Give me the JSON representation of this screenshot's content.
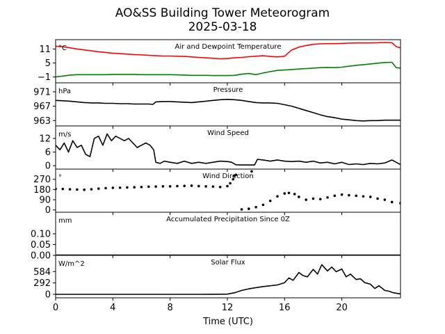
{
  "title_line1": "AO&SS Building Tower Meteorogram",
  "title_line2": "2025-03-18",
  "x_axis_label": "Time (UTC)",
  "colors": {
    "temperature": "#ff0000",
    "dewpoint": "#008000",
    "black": "#000000"
  },
  "chart_data": [
    {
      "type": "line",
      "title": "Air and Dewpoint Temperature",
      "unit": "°C",
      "x_ticks": [
        0,
        4,
        8,
        12,
        16,
        20
      ],
      "xlim": [
        0,
        24.1
      ],
      "ylim": [
        -3.5,
        15
      ],
      "y_ticks": [
        -1,
        5,
        11
      ],
      "y_tick_labels": [
        "−1",
        "5",
        "11"
      ],
      "series": [
        {
          "color": "#ff0000",
          "x": [
            0,
            0.5,
            1,
            1.5,
            2,
            2.5,
            3,
            3.5,
            4,
            4.5,
            5,
            5.5,
            6,
            6.5,
            7,
            7.5,
            8,
            8.5,
            9,
            9.5,
            10,
            10.5,
            11,
            11.5,
            12,
            12.5,
            13,
            13.5,
            14,
            14.5,
            15,
            15.5,
            16,
            16.5,
            17,
            17.5,
            18,
            18.5,
            19,
            19.5,
            20,
            20.5,
            21,
            21.5,
            22,
            22.5,
            23,
            23.5,
            23.8,
            24.1
          ],
          "y": [
            12.2,
            12,
            11.5,
            11,
            10.6,
            10.2,
            9.8,
            9.5,
            9.2,
            9,
            8.8,
            8.6,
            8.5,
            8.3,
            8.1,
            8,
            8,
            7.9,
            7.8,
            7.6,
            7.4,
            7.2,
            7,
            6.8,
            6.9,
            7.2,
            7.4,
            7.7,
            7.9,
            8.1,
            7.8,
            7.6,
            7.9,
            10.6,
            11.8,
            12.5,
            13,
            13.2,
            13.3,
            13.3,
            13.4,
            13.5,
            13.6,
            13.6,
            13.6,
            13.7,
            13.8,
            13.7,
            12,
            11.5
          ]
        },
        {
          "color": "#008000",
          "x": [
            0,
            0.5,
            1,
            1.5,
            2,
            2.5,
            3,
            3.5,
            4,
            4.5,
            5,
            5.5,
            6,
            6.5,
            7,
            7.5,
            8,
            8.5,
            9,
            9.5,
            10,
            10.5,
            11,
            11.5,
            12,
            12.5,
            13,
            13.5,
            14,
            14.5,
            15,
            15.5,
            16,
            16.5,
            17,
            17.5,
            18,
            18.5,
            19,
            19.5,
            20,
            20.5,
            21,
            21.5,
            22,
            22.5,
            23,
            23.5,
            23.8,
            24.1
          ],
          "y": [
            -1,
            -0.6,
            -0.2,
            0,
            0,
            0,
            0,
            0,
            0.1,
            0.1,
            0.1,
            0.1,
            0,
            0,
            0,
            0,
            0,
            -0.1,
            -0.2,
            -0.3,
            -0.3,
            -0.3,
            -0.4,
            -0.4,
            -0.4,
            -0.3,
            0.2,
            0.5,
            0,
            0.7,
            1.3,
            1.8,
            2,
            2.2,
            2.4,
            2.6,
            2.8,
            3,
            3.1,
            3,
            3.2,
            3.6,
            4,
            4.3,
            4.6,
            4.9,
            5.2,
            5.3,
            3,
            2.8
          ]
        }
      ]
    },
    {
      "type": "line",
      "title": "Pressure",
      "unit": "hPa",
      "x_ticks": [
        0,
        4,
        8,
        12,
        16,
        20
      ],
      "xlim": [
        0,
        24.1
      ],
      "ylim": [
        961.5,
        973.5
      ],
      "y_ticks": [
        963,
        967,
        971
      ],
      "y_tick_labels": [
        "963",
        "967",
        "971"
      ],
      "series": [
        {
          "color": "#000000",
          "x": [
            0,
            0.5,
            1,
            1.5,
            2,
            2.5,
            3,
            3.5,
            4,
            4.5,
            5,
            5.5,
            6,
            6.5,
            6.8,
            7,
            7.5,
            8,
            8.5,
            9,
            9.5,
            10,
            10.5,
            11,
            11.5,
            12,
            12.5,
            13,
            13.5,
            14,
            14.5,
            15,
            15.5,
            16,
            16.5,
            17,
            17.5,
            18,
            18.5,
            19,
            19.5,
            20,
            20.5,
            21,
            21.5,
            22,
            22.5,
            23,
            23.5,
            24.1
          ],
          "y": [
            968.6,
            968.5,
            968.4,
            968.2,
            968,
            967.9,
            967.9,
            967.8,
            967.8,
            967.7,
            967.7,
            967.6,
            967.6,
            967.6,
            967.5,
            968.2,
            968.3,
            968.3,
            968.2,
            968.1,
            968,
            968.2,
            968.4,
            968.6,
            968.8,
            968.9,
            968.8,
            968.6,
            968.3,
            968,
            967.9,
            967.9,
            967.8,
            967.4,
            967,
            966.4,
            965.8,
            965.2,
            964.6,
            964.1,
            963.8,
            963.4,
            963.2,
            963,
            962.9,
            963,
            963,
            963.1,
            963.1,
            963.1
          ]
        }
      ]
    },
    {
      "type": "line",
      "title": "Wind Speed",
      "unit": "m/s",
      "x_ticks": [
        0,
        4,
        8,
        12,
        16,
        20
      ],
      "xlim": [
        0,
        24.1
      ],
      "ylim": [
        -1.5,
        17.5
      ],
      "y_ticks": [
        0,
        6,
        12
      ],
      "y_tick_labels": [
        "0",
        "6",
        "12"
      ],
      "series": [
        {
          "color": "#000000",
          "x": [
            0,
            0.3,
            0.6,
            0.9,
            1.2,
            1.5,
            1.8,
            2.1,
            2.4,
            2.7,
            3,
            3.3,
            3.6,
            3.9,
            4.2,
            4.5,
            4.8,
            5.1,
            5.4,
            5.7,
            6,
            6.3,
            6.6,
            6.85,
            7,
            7.3,
            7.6,
            8,
            8.5,
            9,
            9.5,
            10,
            10.5,
            11,
            11.5,
            12,
            12.3,
            12.6,
            13,
            13.5,
            13.9,
            14.1,
            14.5,
            15,
            15.5,
            16,
            16.5,
            17,
            17.5,
            18,
            18.5,
            19,
            19.5,
            20,
            20.5,
            21,
            21.5,
            22,
            22.5,
            23,
            23.5,
            24.1
          ],
          "y": [
            9,
            7,
            10,
            6,
            11,
            8,
            9,
            5,
            4,
            12,
            13,
            9,
            14,
            11,
            13,
            12,
            11,
            12,
            10,
            8,
            9,
            10,
            9,
            7,
            1.5,
            1,
            2,
            1.5,
            1,
            2,
            1,
            1.5,
            1,
            1.5,
            2,
            1.8,
            1.5,
            0.4,
            0.3,
            0.3,
            0.3,
            2.8,
            2.5,
            2,
            2.5,
            2,
            1.8,
            2,
            1.5,
            2,
            1.2,
            1.5,
            0.8,
            1.5,
            0.5,
            0.8,
            0.5,
            1,
            0.8,
            1.2,
            2.5,
            0.5
          ]
        }
      ]
    },
    {
      "type": "scatter",
      "title": "Wind Direction",
      "unit": "°",
      "x_ticks": [
        0,
        4,
        8,
        12,
        16,
        20
      ],
      "xlim": [
        0,
        24.1
      ],
      "ylim": [
        -20,
        360
      ],
      "y_ticks": [
        0,
        90,
        180,
        270
      ],
      "y_tick_labels": [
        "0",
        "90",
        "180",
        "270"
      ],
      "series": [
        {
          "color": "#000000",
          "x": [
            0,
            0.5,
            1,
            1.5,
            2,
            2.5,
            3,
            3.5,
            4,
            4.5,
            5,
            5.5,
            6,
            6.5,
            7,
            7.5,
            8,
            8.5,
            9,
            9.5,
            10,
            10.5,
            11,
            11.5,
            12,
            12.2,
            12.4,
            12.5,
            12.6,
            13,
            13.5,
            13.7,
            14,
            14.5,
            15,
            15.5,
            16,
            16.3,
            16.7,
            17,
            17.5,
            18,
            18.5,
            19,
            19.5,
            20,
            20.5,
            21,
            21.5,
            22,
            22.5,
            23,
            23.5,
            24.1
          ],
          "y": [
            185,
            185,
            182,
            180,
            178,
            182,
            188,
            192,
            195,
            196,
            198,
            200,
            202,
            205,
            206,
            208,
            208,
            210,
            212,
            214,
            210,
            208,
            206,
            202,
            210,
            235,
            270,
            300,
            310,
            5,
            10,
            340,
            25,
            45,
            80,
            120,
            145,
            150,
            140,
            115,
            90,
            100,
            95,
            110,
            125,
            135,
            130,
            125,
            120,
            115,
            100,
            90,
            70,
            60
          ]
        }
      ]
    },
    {
      "type": "line",
      "title": "Accumulated Precipitation Since 0Z",
      "unit": "mm",
      "x_ticks": [
        0,
        4,
        8,
        12,
        16,
        20
      ],
      "xlim": [
        0,
        24.1
      ],
      "ylim": [
        0,
        0.2
      ],
      "y_ticks": [
        0,
        0.05,
        0.1
      ],
      "y_tick_labels": [
        "0.00",
        "0.05",
        "0.10"
      ],
      "series": [
        {
          "color": "#000000",
          "x": [
            0,
            24.1
          ],
          "y": [
            0,
            0
          ]
        }
      ]
    },
    {
      "type": "line",
      "title": "Solar Flux",
      "unit": "W/m^2",
      "x_ticks": [
        0,
        4,
        8,
        12,
        16,
        20
      ],
      "xlim": [
        0,
        24.1
      ],
      "ylim": [
        -90,
        1000
      ],
      "y_ticks": [
        0,
        292,
        584
      ],
      "y_tick_labels": [
        "0",
        "292",
        "584"
      ],
      "series": [
        {
          "color": "#000000",
          "x": [
            0,
            2,
            4,
            6,
            8,
            10,
            11,
            12,
            12.5,
            13,
            13.5,
            14,
            14.5,
            15,
            15.5,
            16,
            16.3,
            16.6,
            17,
            17.3,
            17.6,
            18,
            18.3,
            18.6,
            19,
            19.3,
            19.6,
            20,
            20.3,
            20.6,
            21,
            21.3,
            21.6,
            22,
            22.3,
            22.6,
            23,
            23.3,
            23.6,
            24.1
          ],
          "y": [
            0,
            0,
            0,
            0,
            0,
            0,
            2,
            5,
            40,
            100,
            140,
            170,
            200,
            220,
            240,
            300,
            420,
            360,
            560,
            480,
            450,
            640,
            520,
            760,
            600,
            700,
            580,
            650,
            450,
            520,
            380,
            400,
            300,
            260,
            150,
            220,
            100,
            80,
            40,
            10
          ]
        }
      ]
    }
  ]
}
